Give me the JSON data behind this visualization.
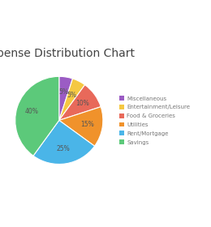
{
  "title": "Expense Distribution Chart",
  "categories": [
    "Miscellaneous",
    "Entertainment/Leisure",
    "Food & Groceries",
    "Utilities",
    "Rent/Mortgage",
    "Savings"
  ],
  "values": [
    5,
    5,
    10,
    15,
    25,
    40
  ],
  "colors": [
    "#9b5cc4",
    "#f5c842",
    "#e8695a",
    "#f0922b",
    "#4ab5e8",
    "#5cc97a"
  ],
  "startangle": 90,
  "labels_inside": [
    "5%",
    "5%",
    "10%",
    "15%",
    "25%",
    "40%"
  ],
  "background_color": "#ffffff",
  "title_fontsize": 10,
  "legend_fontsize": 5.0,
  "label_fontsize": 5.5,
  "label_color": "#555555"
}
